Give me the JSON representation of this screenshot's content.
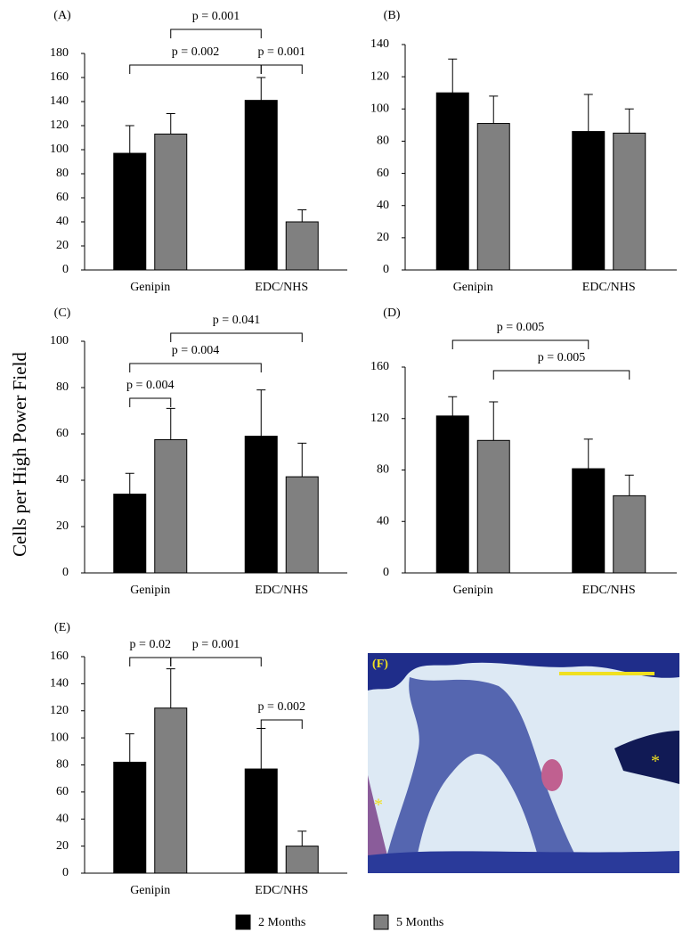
{
  "chart_data": [
    {
      "type": "bar",
      "title": "(A)",
      "categories": [
        "Genipin",
        "EDC/NHS"
      ],
      "ylim": [
        0,
        180
      ],
      "yticks": [
        0,
        20,
        40,
        60,
        80,
        100,
        120,
        140,
        160,
        180
      ],
      "series": [
        {
          "name": "2 Months",
          "color": "#000000",
          "values": [
            97,
            141
          ],
          "errors": [
            23,
            19
          ]
        },
        {
          "name": "5 Months",
          "color": "#808080",
          "values": [
            113,
            40
          ],
          "errors": [
            17,
            10
          ]
        }
      ],
      "annotations": [
        "p = 0.001",
        "p = 0.002",
        "p = 0.001"
      ]
    },
    {
      "type": "bar",
      "title": "(B)",
      "categories": [
        "Genipin",
        "EDC/NHS"
      ],
      "ylim": [
        0,
        140
      ],
      "yticks": [
        0,
        20,
        40,
        60,
        80,
        100,
        120,
        140
      ],
      "series": [
        {
          "name": "2 Months",
          "color": "#000000",
          "values": [
            110,
            86
          ],
          "errors": [
            21,
            23
          ]
        },
        {
          "name": "5 Months",
          "color": "#808080",
          "values": [
            91,
            85
          ],
          "errors": [
            17,
            15
          ]
        }
      ],
      "annotations": []
    },
    {
      "type": "bar",
      "title": "(C)",
      "categories": [
        "Genipin",
        "EDC/NHS"
      ],
      "ylim": [
        0,
        100
      ],
      "yticks": [
        0,
        20,
        40,
        60,
        80,
        100
      ],
      "series": [
        {
          "name": "2 Months",
          "color": "#000000",
          "values": [
            34,
            59
          ],
          "errors": [
            9,
            20
          ]
        },
        {
          "name": "5 Months",
          "color": "#808080",
          "values": [
            57.5,
            41.5
          ],
          "errors": [
            13.5,
            14.5
          ]
        }
      ],
      "annotations": [
        "p = 0.041",
        "p = 0.004",
        "p = 0.004"
      ]
    },
    {
      "type": "bar",
      "title": "(D)",
      "categories": [
        "Genipin",
        "EDC/NHS"
      ],
      "ylim": [
        0,
        160
      ],
      "yticks": [
        0,
        40,
        80,
        120,
        160
      ],
      "series": [
        {
          "name": "2 Months",
          "color": "#000000",
          "values": [
            122,
            81
          ],
          "errors": [
            15,
            23
          ]
        },
        {
          "name": "5 Months",
          "color": "#808080",
          "values": [
            103,
            60
          ],
          "errors": [
            30,
            16
          ]
        }
      ],
      "annotations": [
        "p = 0.005",
        "p = 0.005"
      ]
    },
    {
      "type": "bar",
      "title": "(E)",
      "categories": [
        "Genipin",
        "EDC/NHS"
      ],
      "ylim": [
        0,
        160
      ],
      "yticks": [
        0,
        20,
        40,
        60,
        80,
        100,
        120,
        140,
        160
      ],
      "series": [
        {
          "name": "2 Months",
          "color": "#000000",
          "values": [
            82,
            77
          ],
          "errors": [
            21,
            30
          ]
        },
        {
          "name": "5 Months",
          "color": "#808080",
          "values": [
            122,
            20
          ],
          "errors": [
            29,
            11
          ]
        }
      ],
      "annotations": [
        "p = 0.02",
        "p = 0.001",
        "p = 0.002"
      ]
    }
  ],
  "y_label": "Cells per High Power Field",
  "image_panel": {
    "label": "(F)",
    "markers": [
      "*",
      "*"
    ]
  }
}
